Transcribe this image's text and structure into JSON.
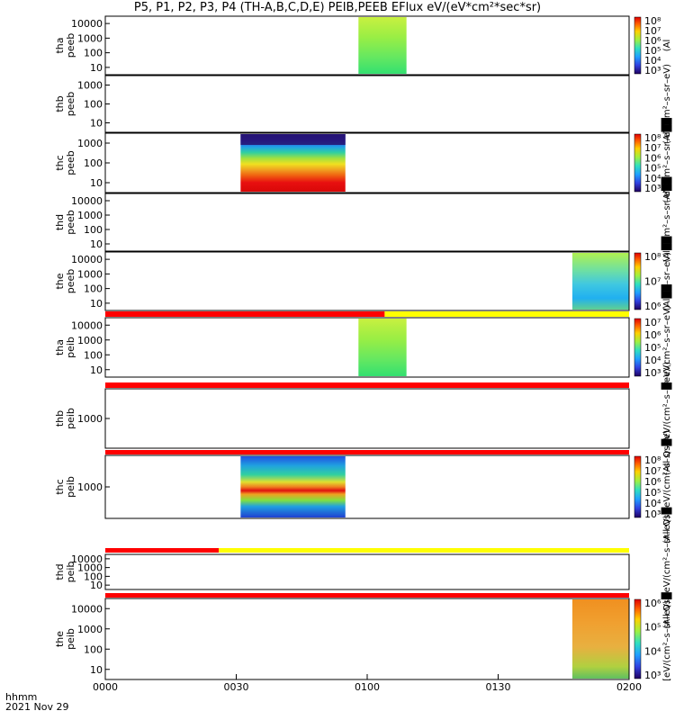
{
  "title": "P5, P1, P2, P3, P4 (TH-A,B,C,D,E) PEIB,PEEB EFlux eV/(eV*cm²*sec*sr)",
  "footer": {
    "line1": "hhmm",
    "line2": "2021 Nov 29"
  },
  "colors": {
    "flag_red": "#ff0000",
    "flag_yellow": "#ffff00",
    "axis": "#000000"
  },
  "chart_data": {
    "type": "heatmap",
    "x_ticks": [
      "0000",
      "0030",
      "0100",
      "0130",
      "0200"
    ],
    "x_range": [
      "00:00",
      "02:00"
    ],
    "panels": [
      {
        "id": "tha_peeb",
        "ylabel": [
          "tha",
          "peeb"
        ],
        "yticks": [
          "10000",
          "1000",
          "100",
          "10"
        ],
        "cbar_ticks": [
          "10⁸",
          "10⁷",
          "10⁶",
          "10⁵",
          "10⁴",
          "10³"
        ],
        "cbar_label": "(Al",
        "blocks": [
          {
            "t0": "00:58",
            "t1": "01:09",
            "palette": "green"
          }
        ]
      },
      {
        "id": "thb_peeb",
        "ylabel": [
          "thb",
          "peeb"
        ],
        "yticks": [
          "1000",
          "100",
          "10"
        ],
        "cbar_ticks": [],
        "cbar_label": "(Al██m²–s–sr–eV)",
        "blocks": []
      },
      {
        "id": "thc_peeb",
        "ylabel": [
          "thc",
          "peeb"
        ],
        "yticks": [
          "1000",
          "100",
          "10"
        ],
        "cbar_ticks": [
          "10⁸",
          "10⁷",
          "10⁶",
          "10⁵",
          "10⁴",
          "10³"
        ],
        "cbar_label": "(Al██m²–s–sr–eV)",
        "blocks": [
          {
            "t0": "00:31",
            "t1": "00:55",
            "palette": "rainbow"
          }
        ]
      },
      {
        "id": "thd_peeb",
        "ylabel": [
          "thd",
          "peeb"
        ],
        "yticks": [
          "10000",
          "1000",
          "100",
          "10"
        ],
        "cbar_ticks": [],
        "cbar_label": "(Al██m²–s–sr–eV)",
        "blocks": []
      },
      {
        "id": "the_peeb",
        "ylabel": [
          "the",
          "peeb"
        ],
        "yticks": [
          "10000",
          "1000",
          "100",
          "10"
        ],
        "cbar_ticks": [
          "10⁸",
          "10⁷",
          "10⁶"
        ],
        "cbar_label": "(Al██–sr–eV)",
        "blocks": [
          {
            "t0": "01:47",
            "t1": "02:00",
            "palette": "cyan"
          }
        ]
      },
      {
        "id": "tha_peib",
        "ylabel": [
          "tha",
          "peib"
        ],
        "yticks": [
          "10000",
          "1000",
          "100",
          "10"
        ],
        "cbar_ticks": [
          "10⁷",
          "10⁶",
          "10⁵",
          "10⁴",
          "10³"
        ],
        "cbar_label": "█eV/(cm²–s–sr–eV)",
        "blocks": [
          {
            "t0": "00:58",
            "t1": "01:09",
            "palette": "green"
          }
        ]
      },
      {
        "id": "thb_peib",
        "ylabel": [
          "thb",
          "peib"
        ],
        "yticks": [
          "1000"
        ],
        "cbar_ticks": [],
        "cbar_label": "(All Qs█eV/(cm²–s–sr–eV)",
        "blocks": []
      },
      {
        "id": "thc_peib",
        "ylabel": [
          "thc",
          "peib"
        ],
        "yticks": [
          "1000"
        ],
        "cbar_ticks": [
          "10⁸",
          "10⁷",
          "10⁶",
          "10⁵",
          "10⁴",
          "10³"
        ],
        "cbar_label": "(All Qs█eV/(cm²–s–sr–eV)",
        "blocks": [
          {
            "t0": "00:31",
            "t1": "00:55",
            "palette": "peib_c"
          }
        ]
      },
      {
        "id": "thd_peib",
        "ylabel": [
          "thd",
          "peib"
        ],
        "yticks": [
          "10000",
          "1000",
          "100",
          "10"
        ],
        "cbar_ticks": [],
        "cbar_label": "(All Qs█eV/(cm²–s–sr–eV)",
        "blocks": []
      },
      {
        "id": "the_peib",
        "ylabel": [
          "the",
          "peib"
        ],
        "yticks": [
          "10000",
          "1000",
          "100",
          "10"
        ],
        "cbar_ticks": [
          "10⁶",
          "10⁵",
          "10⁴",
          "10³"
        ],
        "cbar_label": "[eV/(cm²–s–sr–eV)]",
        "blocks": [
          {
            "t0": "01:47",
            "t1": "02:00",
            "palette": "orange"
          }
        ]
      }
    ],
    "flag_bars": [
      {
        "after_panel": "the_peeb",
        "segments": [
          {
            "t0": "00:00",
            "t1": "01:04",
            "color": "red"
          },
          {
            "t0": "01:04",
            "t1": "02:00",
            "color": "yellow"
          }
        ]
      },
      {
        "after_panel": "tha_peib",
        "segments": [
          {
            "t0": "00:00",
            "t1": "02:00",
            "color": "red"
          }
        ]
      },
      {
        "after_panel": "thb_peib",
        "segments": [
          {
            "t0": "00:00",
            "t1": "02:00",
            "color": "red"
          }
        ]
      },
      {
        "after_panel": "thc_peib",
        "segments": [
          {
            "t0": "00:00",
            "t1": "00:26",
            "color": "red"
          },
          {
            "t0": "00:26",
            "t1": "02:00",
            "color": "yellow"
          }
        ]
      },
      {
        "after_panel": "thd_peib",
        "segments": [
          {
            "t0": "00:00",
            "t1": "02:00",
            "color": "red"
          }
        ]
      }
    ]
  }
}
